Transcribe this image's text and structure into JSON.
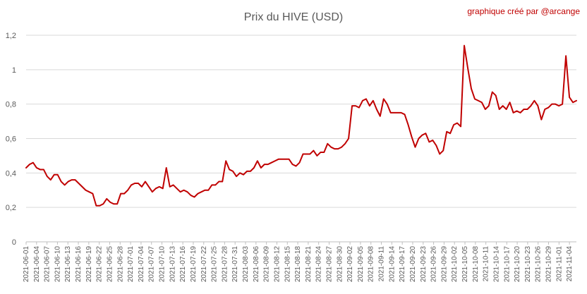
{
  "chart_data": {
    "type": "line",
    "title": "Prix du HIVE (USD)",
    "credit": "graphique créé par @arcange",
    "xlabel": "",
    "ylabel": "",
    "ylim": [
      0,
      1.2
    ],
    "y_ticks": [
      "0",
      "0,2",
      "0,4",
      "0,6",
      "0,8",
      "1",
      "1,2"
    ],
    "y_tick_values": [
      0,
      0.2,
      0.4,
      0.6,
      0.8,
      1.0,
      1.2
    ],
    "grid": true,
    "legend": "none",
    "line_color": "#c00000",
    "x_start": "2021-06-01",
    "x_end": "2021-11-06",
    "x_ticks": [
      "2021-06-01",
      "2021-06-04",
      "2021-06-07",
      "2021-06-10",
      "2021-06-13",
      "2021-06-16",
      "2021-06-19",
      "2021-06-22",
      "2021-06-25",
      "2021-06-28",
      "2021-07-01",
      "2021-07-04",
      "2021-07-07",
      "2021-07-10",
      "2021-07-13",
      "2021-07-16",
      "2021-07-19",
      "2021-07-22",
      "2021-07-25",
      "2021-07-28",
      "2021-07-31",
      "2021-08-03",
      "2021-08-06",
      "2021-08-09",
      "2021-08-12",
      "2021-08-15",
      "2021-08-18",
      "2021-08-21",
      "2021-08-24",
      "2021-08-27",
      "2021-08-30",
      "2021-09-02",
      "2021-09-05",
      "2021-09-08",
      "2021-09-11",
      "2021-09-14",
      "2021-09-17",
      "2021-09-20",
      "2021-09-23",
      "2021-09-26",
      "2021-09-29",
      "2021-10-02",
      "2021-10-05",
      "2021-10-08",
      "2021-10-11",
      "2021-10-14",
      "2021-10-17",
      "2021-10-20",
      "2021-10-23",
      "2021-10-26",
      "2021-10-29",
      "2021-11-01",
      "2021-11-04"
    ],
    "series": [
      {
        "values": [
          0.43,
          0.45,
          0.46,
          0.43,
          0.42,
          0.42,
          0.38,
          0.36,
          0.39,
          0.39,
          0.35,
          0.33,
          0.35,
          0.36,
          0.36,
          0.34,
          0.32,
          0.3,
          0.29,
          0.28,
          0.21,
          0.21,
          0.22,
          0.25,
          0.23,
          0.22,
          0.22,
          0.28,
          0.28,
          0.3,
          0.33,
          0.34,
          0.34,
          0.32,
          0.35,
          0.32,
          0.29,
          0.31,
          0.32,
          0.31,
          0.43,
          0.32,
          0.33,
          0.31,
          0.29,
          0.3,
          0.29,
          0.27,
          0.26,
          0.28,
          0.29,
          0.3,
          0.3,
          0.33,
          0.33,
          0.35,
          0.35,
          0.47,
          0.42,
          0.41,
          0.38,
          0.4,
          0.39,
          0.41,
          0.41,
          0.43,
          0.47,
          0.43,
          0.45,
          0.45,
          0.46,
          0.47,
          0.48,
          0.48,
          0.48,
          0.48,
          0.45,
          0.44,
          0.46,
          0.51,
          0.51,
          0.51,
          0.53,
          0.5,
          0.52,
          0.52,
          0.57,
          0.55,
          0.54,
          0.54,
          0.55,
          0.57,
          0.6,
          0.79,
          0.79,
          0.78,
          0.82,
          0.83,
          0.79,
          0.82,
          0.77,
          0.73,
          0.83,
          0.8,
          0.75,
          0.75,
          0.75,
          0.75,
          0.74,
          0.68,
          0.61,
          0.55,
          0.6,
          0.62,
          0.63,
          0.58,
          0.59,
          0.56,
          0.51,
          0.53,
          0.64,
          0.63,
          0.68,
          0.69,
          0.67,
          1.14,
          1.01,
          0.89,
          0.83,
          0.82,
          0.81,
          0.77,
          0.79,
          0.87,
          0.85,
          0.77,
          0.79,
          0.77,
          0.81,
          0.75,
          0.76,
          0.75,
          0.77,
          0.77,
          0.79,
          0.82,
          0.79,
          0.71,
          0.77,
          0.78,
          0.8,
          0.8,
          0.79,
          0.8,
          1.08,
          0.84,
          0.81,
          0.82
        ]
      }
    ]
  }
}
